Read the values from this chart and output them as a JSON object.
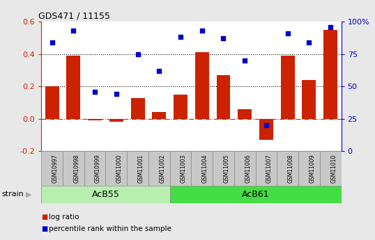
{
  "title": "GDS471 / 11155",
  "samples": [
    "GSM10997",
    "GSM10998",
    "GSM10999",
    "GSM11000",
    "GSM11001",
    "GSM11002",
    "GSM11003",
    "GSM11004",
    "GSM11005",
    "GSM11006",
    "GSM11007",
    "GSM11008",
    "GSM11009",
    "GSM11010"
  ],
  "log_ratio": [
    0.2,
    0.39,
    -0.01,
    -0.02,
    0.13,
    0.04,
    0.15,
    0.41,
    0.27,
    0.06,
    -0.13,
    0.39,
    0.24,
    0.55
  ],
  "percentile_rank": [
    84,
    93,
    46,
    44,
    75,
    62,
    88,
    93,
    87,
    70,
    20,
    91,
    84,
    96
  ],
  "groups": [
    {
      "label": "AcB55",
      "start": 0,
      "end": 5,
      "color": "#b8efb0"
    },
    {
      "label": "AcB61",
      "start": 6,
      "end": 13,
      "color": "#44dd44"
    }
  ],
  "bar_color": "#cc2200",
  "dot_color": "#0000cc",
  "ylim_left": [
    -0.2,
    0.6
  ],
  "ylim_right": [
    0,
    100
  ],
  "yticks_left": [
    -0.2,
    0.0,
    0.2,
    0.4,
    0.6
  ],
  "yticks_right": [
    0,
    25,
    50,
    75,
    100
  ],
  "grid_lines": [
    0.2,
    0.4
  ],
  "bg_color": "#e8e8e8",
  "plot_bg": "#ffffff",
  "tick_label_color_left": "#cc2200",
  "tick_label_color_right": "#0000cc",
  "strain_label": "strain",
  "cell_color": "#c8c8c8",
  "legend_items": [
    {
      "label": "log ratio",
      "color": "#cc2200"
    },
    {
      "label": "percentile rank within the sample",
      "color": "#0000cc"
    }
  ]
}
